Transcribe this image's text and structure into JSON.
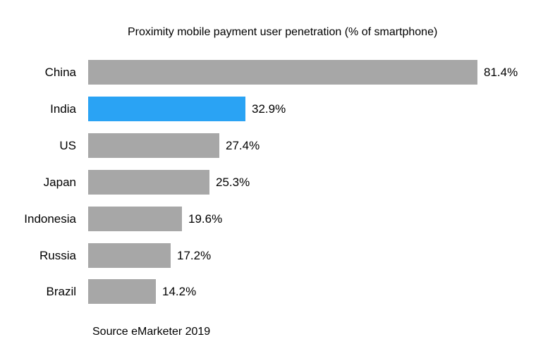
{
  "page": {
    "background_color": "#ffffff",
    "text_color": "#000000"
  },
  "chart_data": {
    "type": "bar",
    "orientation": "horizontal",
    "title": "Proximity mobile payment user penetration (% of smartphone)",
    "categories": [
      "China",
      "India",
      "US",
      "Japan",
      "Indonesia",
      "Russia",
      "Brazil"
    ],
    "values": [
      81.4,
      32.9,
      27.4,
      25.3,
      19.6,
      17.2,
      14.2
    ],
    "value_labels": [
      "81.4%",
      "32.9%",
      "27.4%",
      "25.3%",
      "19.6%",
      "17.2%",
      "14.2%"
    ],
    "highlighted_category": "India",
    "bar_color": "#a7a7a7",
    "highlight_color": "#2aa3f4",
    "xlim": [
      0,
      100
    ],
    "grid": false,
    "legend": false,
    "source": "Source eMarketer 2019"
  }
}
